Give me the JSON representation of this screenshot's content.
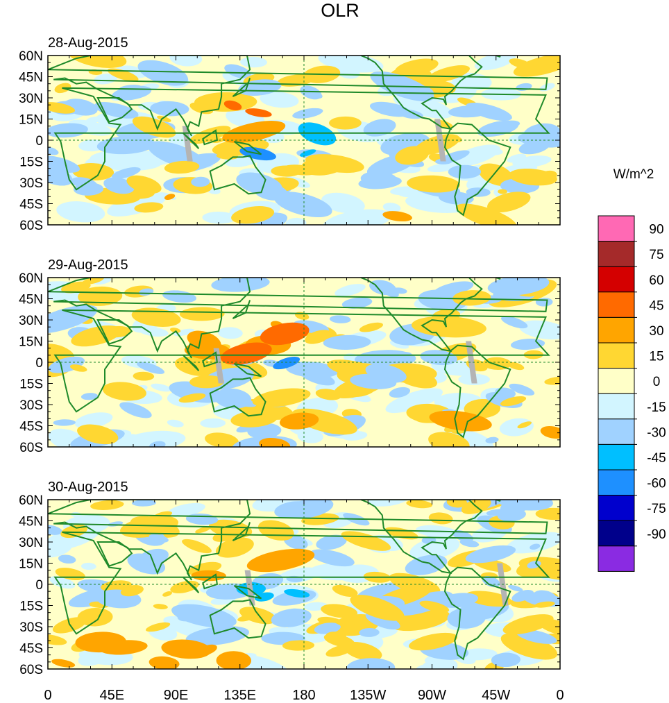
{
  "title": "OLR",
  "panels": [
    {
      "date": "28-Aug-2015"
    },
    {
      "date": "29-Aug-2015"
    },
    {
      "date": "30-Aug-2015"
    }
  ],
  "lat_labels": [
    "60N",
    "45N",
    "30N",
    "15N",
    "0",
    "15S",
    "30S",
    "45S",
    "60S"
  ],
  "lon_labels": [
    "0",
    "45E",
    "90E",
    "135E",
    "180",
    "135W",
    "90W",
    "45W",
    "0"
  ],
  "colorbar": {
    "unit": "W/m^2",
    "labels": [
      "90",
      "75",
      "60",
      "45",
      "30",
      "15",
      "0",
      "-15",
      "-30",
      "-45",
      "-60",
      "-75",
      "-90"
    ],
    "colors": [
      "#ff69b4",
      "#a52a2a",
      "#d40000",
      "#ff6a00",
      "#ffa500",
      "#ffd732",
      "#ffffc8",
      "#d2f5ff",
      "#a0d2ff",
      "#00bfff",
      "#1e90ff",
      "#0000cd",
      "#00008b",
      "#8a2be2"
    ]
  },
  "colors": {
    "land_outline": "#1f8a2a",
    "missing": "#b4b4b4",
    "background": "#ffffc8"
  }
}
